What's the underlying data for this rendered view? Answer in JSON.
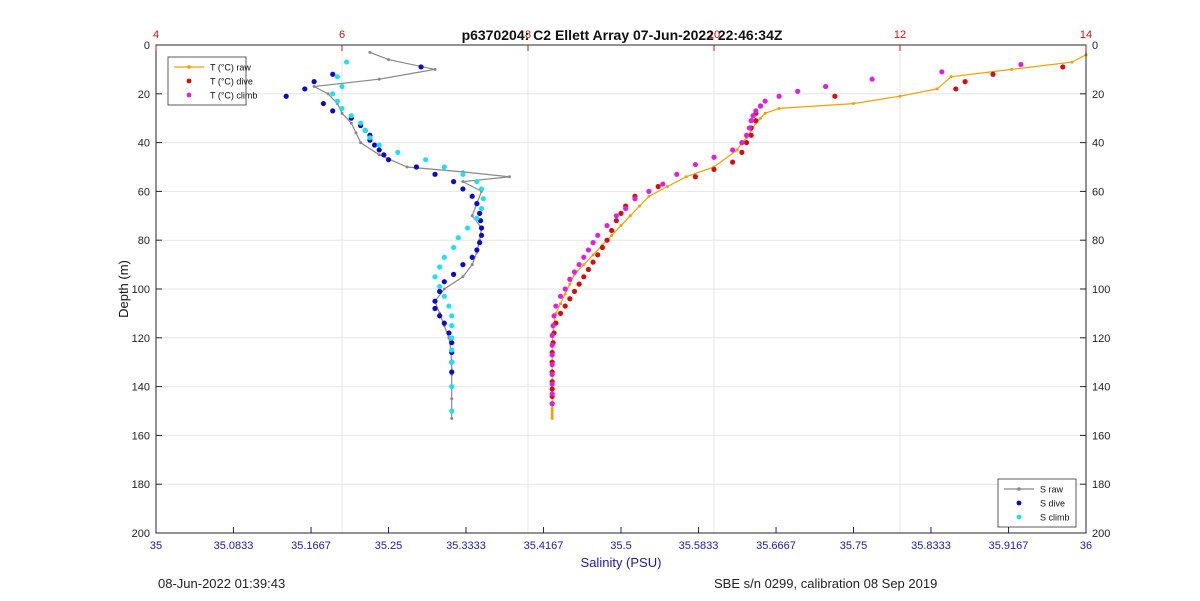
{
  "chart_data": {
    "type": "scatter",
    "title": "p6370204: C2 Ellett Array 07-Jun-2022 22:46:34Z",
    "ylabel": "Depth (m)",
    "xlabel": "Salinity (PSU)",
    "ylim": [
      0,
      200
    ],
    "yticks": [
      "0",
      "20",
      "40",
      "60",
      "80",
      "100",
      "120",
      "140",
      "160",
      "180",
      "200"
    ],
    "x_bottom": {
      "range": [
        35,
        36
      ],
      "tick_labels": [
        "35",
        "35.0833",
        "35.1667",
        "35.25",
        "35.3333",
        "35.4167",
        "35.5",
        "35.5833",
        "35.6667",
        "35.75",
        "35.8333",
        "35.9167",
        "36"
      ],
      "color": "#1a1ab0"
    },
    "x_top": {
      "range": [
        4,
        14
      ],
      "tick_labels": [
        "4",
        "6",
        "8",
        "10",
        "12",
        "14"
      ],
      "color": "#cc1111"
    },
    "grid": true,
    "legend_temperature": {
      "placement": "top-left",
      "entries": [
        "T (°C) raw",
        "T (°C) dive",
        "T (°C) climb"
      ]
    },
    "legend_salinity": {
      "placement": "bottom-right",
      "entries": [
        "S raw",
        "S dive",
        "S climb"
      ]
    },
    "series": [
      {
        "name": "T (°C) raw",
        "axis": "top",
        "style": "line-marker",
        "color": "#f2a000",
        "x": [
          14.0,
          13.85,
          13.2,
          12.55,
          12.4,
          12.0,
          11.5,
          10.7,
          10.55,
          10.5,
          10.45,
          10.4,
          10.35,
          10.3,
          10.25,
          10.0,
          9.7,
          9.5,
          9.3,
          9.2,
          9.1,
          9.0,
          8.9,
          8.8,
          8.7,
          8.6,
          8.5,
          8.45,
          8.4,
          8.35,
          8.3,
          8.28,
          8.27,
          8.26,
          8.26,
          8.26,
          8.26,
          8.26,
          8.26,
          8.26,
          8.26,
          8.26,
          8.26,
          8.26,
          8.26,
          8.26
        ],
        "y": [
          4,
          7,
          10,
          13,
          18,
          21,
          24,
          26,
          28,
          30,
          32,
          35,
          38,
          40,
          43,
          50,
          54,
          58,
          62,
          66,
          70,
          74,
          78,
          82,
          86,
          90,
          94,
          98,
          102,
          106,
          110,
          114,
          118,
          122,
          126,
          130,
          134,
          138,
          141,
          144,
          147,
          149,
          150,
          151,
          152,
          153
        ]
      },
      {
        "name": "T (°C) dive",
        "axis": "top",
        "style": "marker",
        "color": "#d01010",
        "x": [
          13.75,
          13.0,
          12.7,
          12.6,
          11.3,
          10.5,
          10.45,
          10.45,
          10.4,
          10.4,
          10.35,
          10.3,
          10.2,
          10.0,
          9.8,
          9.4,
          9.15,
          9.05,
          9.0,
          8.95,
          8.9,
          8.85,
          8.8,
          8.75,
          8.7,
          8.65,
          8.6,
          8.55,
          8.5,
          8.45,
          8.4,
          8.35,
          8.3,
          8.28,
          8.27,
          8.26,
          8.26,
          8.26,
          8.26,
          8.26,
          8.26,
          8.26
        ],
        "y": [
          9,
          12,
          15,
          18,
          21,
          25,
          28,
          31,
          34,
          37,
          40,
          44,
          48,
          51,
          54,
          58,
          62,
          66,
          69,
          72,
          76,
          80,
          83,
          86,
          89,
          92,
          95,
          98,
          101,
          104,
          107,
          110,
          114,
          118,
          122,
          126,
          130,
          134,
          138,
          141,
          144,
          147
        ]
      },
      {
        "name": "T (°C) climb",
        "axis": "top",
        "style": "marker",
        "color": "#e020e0",
        "x": [
          13.3,
          12.45,
          11.7,
          11.2,
          10.9,
          10.7,
          10.55,
          10.5,
          10.45,
          10.42,
          10.4,
          10.38,
          10.35,
          10.3,
          10.2,
          10.0,
          9.8,
          9.6,
          9.45,
          9.3,
          9.15,
          9.05,
          8.95,
          8.85,
          8.75,
          8.7,
          8.65,
          8.6,
          8.55,
          8.5,
          8.45,
          8.4,
          8.35,
          8.3,
          8.28,
          8.27,
          8.26,
          8.26,
          8.26,
          8.26,
          8.26,
          8.26,
          8.26,
          8.26
        ],
        "y": [
          8,
          11,
          14,
          17,
          19,
          21,
          23,
          25,
          27,
          29,
          31,
          34,
          37,
          40,
          43,
          46,
          49,
          53,
          57,
          60,
          63,
          67,
          70,
          74,
          78,
          81,
          84,
          87,
          90,
          93,
          96,
          100,
          103,
          107,
          111,
          115,
          119,
          123,
          127,
          131,
          135,
          139,
          143,
          147
        ]
      },
      {
        "name": "S raw",
        "axis": "bottom",
        "style": "line-marker",
        "color": "#888888",
        "x": [
          35.23,
          35.25,
          35.3,
          35.24,
          35.17,
          35.185,
          35.195,
          35.2,
          35.21,
          35.215,
          35.22,
          35.24,
          35.27,
          35.33,
          35.38,
          35.33,
          35.35,
          35.345,
          35.34,
          35.35,
          35.348,
          35.345,
          35.34,
          35.33,
          35.31,
          35.3,
          35.305,
          35.31,
          35.315,
          35.317,
          35.318,
          35.318,
          35.318,
          35.318,
          35.318,
          35.318
        ],
        "y": [
          3,
          6,
          10,
          14,
          17,
          20,
          24,
          28,
          32,
          36,
          40,
          45,
          50,
          52,
          54,
          56,
          60,
          65,
          70,
          75,
          80,
          85,
          90,
          95,
          100,
          105,
          110,
          115,
          120,
          125,
          130,
          135,
          140,
          145,
          150,
          153
        ]
      },
      {
        "name": "S dive",
        "axis": "bottom",
        "style": "marker",
        "color": "#0a0ac8",
        "x": [
          35.285,
          35.19,
          35.17,
          35.16,
          35.14,
          35.18,
          35.19,
          35.21,
          35.22,
          35.225,
          35.23,
          35.23,
          35.235,
          35.24,
          35.245,
          35.25,
          35.28,
          35.3,
          35.32,
          35.33,
          35.34,
          35.345,
          35.348,
          35.349,
          35.35,
          35.35,
          35.348,
          35.345,
          35.34,
          35.33,
          35.32,
          35.31,
          35.305,
          35.3,
          35.3,
          35.305,
          35.31,
          35.315,
          35.318,
          35.318,
          35.318,
          35.318
        ],
        "y": [
          9,
          12,
          15,
          18,
          21,
          24,
          27,
          30,
          33,
          35,
          37,
          39,
          41,
          43,
          45,
          47,
          50,
          53,
          56,
          59,
          62,
          65,
          69,
          72,
          75,
          78,
          81,
          84,
          87,
          90,
          94,
          97,
          101,
          105,
          108,
          111,
          114,
          118,
          122,
          126,
          130,
          134
        ]
      },
      {
        "name": "S climb",
        "axis": "bottom",
        "style": "marker",
        "color": "#20e0f0",
        "x": [
          35.205,
          35.195,
          35.2,
          35.19,
          35.195,
          35.2,
          35.21,
          35.22,
          35.225,
          35.23,
          35.24,
          35.26,
          35.29,
          35.31,
          35.33,
          35.345,
          35.35,
          35.352,
          35.35,
          35.345,
          35.335,
          35.325,
          35.32,
          35.31,
          35.305,
          35.3,
          35.305,
          35.31,
          35.315,
          35.318,
          35.318,
          35.318,
          35.318,
          35.318,
          35.318,
          35.318
        ],
        "y": [
          7,
          13,
          17,
          20,
          23,
          26,
          29,
          32,
          35,
          38,
          41,
          44,
          47,
          50,
          53,
          56,
          59,
          63,
          67,
          71,
          75,
          79,
          83,
          87,
          91,
          95,
          99,
          103,
          107,
          111,
          115,
          120,
          125,
          130,
          140,
          150
        ]
      }
    ]
  },
  "footer": {
    "left": "08-Jun-2022 01:39:43",
    "right": "SBE s/n 0299, calibration 08 Sep 2019"
  }
}
